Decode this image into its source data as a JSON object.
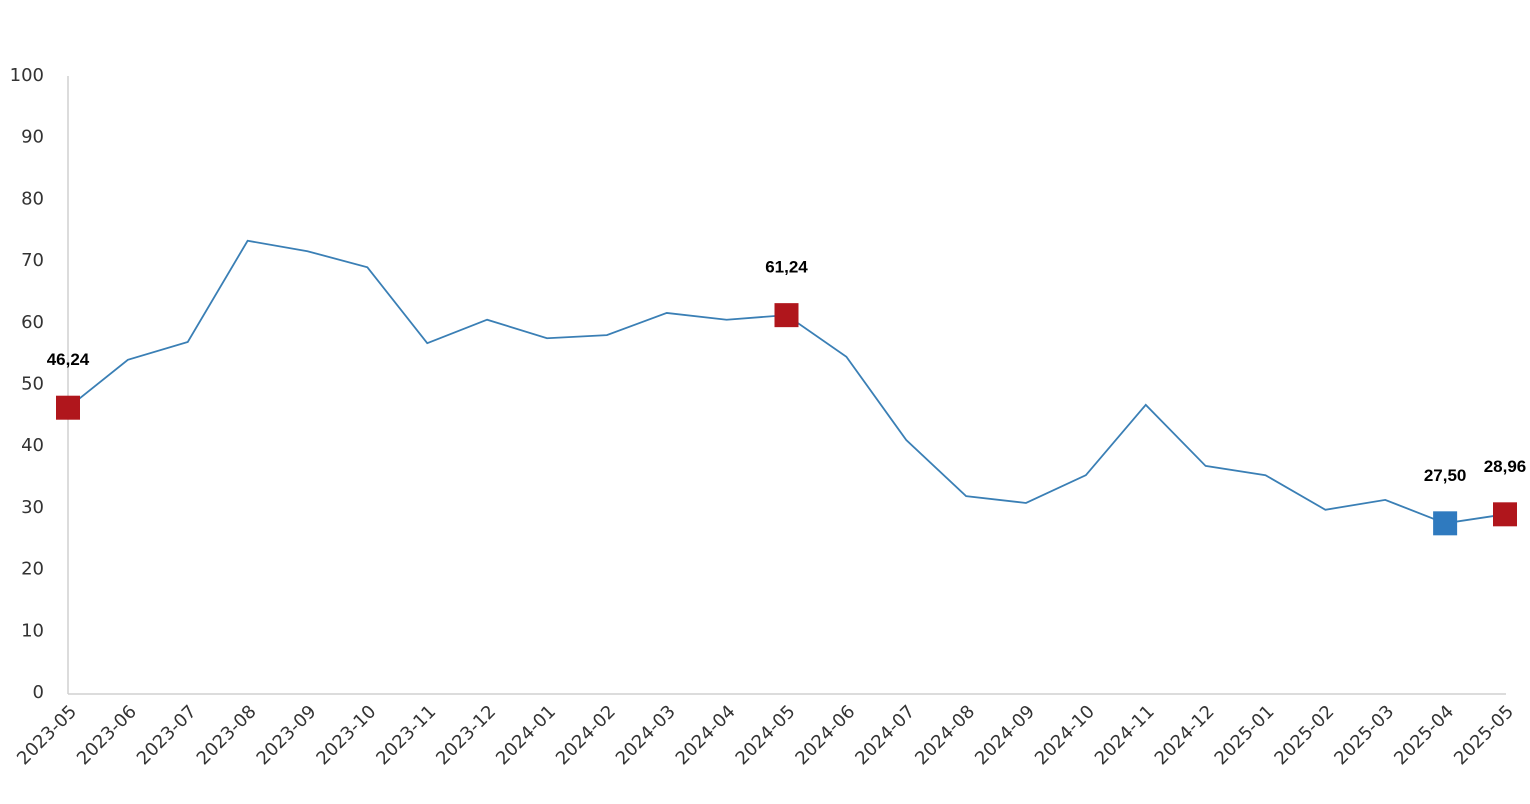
{
  "chart_data": {
    "type": "line",
    "categories": [
      "2023-05",
      "2023-06",
      "2023-07",
      "2023-08",
      "2023-09",
      "2023-10",
      "2023-11",
      "2023-12",
      "2024-01",
      "2024-02",
      "2024-03",
      "2024-04",
      "2024-05",
      "2024-06",
      "2024-07",
      "2024-08",
      "2024-09",
      "2024-10",
      "2024-11",
      "2024-12",
      "2025-01",
      "2025-02",
      "2025-03",
      "2025-04",
      "2025-05"
    ],
    "series": [
      {
        "color": "#3a7fb5",
        "values": [
          46.24,
          54.0,
          56.9,
          73.3,
          71.6,
          69.0,
          56.7,
          60.5,
          57.5,
          58.0,
          61.6,
          60.5,
          61.24,
          54.5,
          41.0,
          31.9,
          30.8,
          35.3,
          46.7,
          36.8,
          35.3,
          29.7,
          31.3,
          27.5,
          28.96
        ],
        "value_labels": [
          "46,24",
          null,
          null,
          null,
          null,
          null,
          null,
          null,
          null,
          null,
          null,
          null,
          "61,24",
          null,
          null,
          null,
          null,
          null,
          null,
          null,
          null,
          null,
          null,
          "27,50",
          "28,96"
        ],
        "marker_colors": [
          "#b0161c",
          null,
          null,
          null,
          null,
          null,
          null,
          null,
          null,
          null,
          null,
          null,
          "#b0161c",
          null,
          null,
          null,
          null,
          null,
          null,
          null,
          null,
          null,
          null,
          "#2f7abf",
          "#b0161c"
        ]
      }
    ],
    "ylim": [
      0,
      100
    ],
    "yticks": [
      0,
      10,
      20,
      30,
      40,
      50,
      60,
      70,
      80,
      90,
      100
    ],
    "grid": false
  }
}
